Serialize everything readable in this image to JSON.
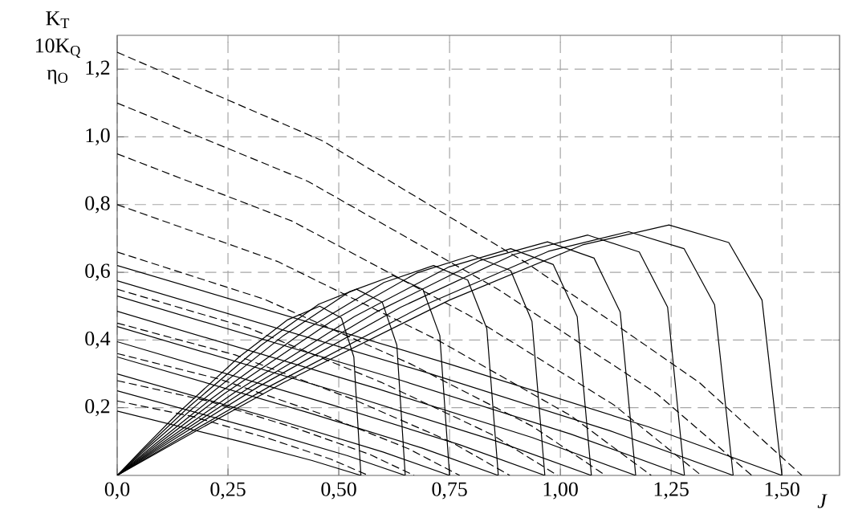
{
  "chart_data": {
    "type": "line",
    "xlabel": "J",
    "ylabel": "K$_{T}$ 10K$_{Q}$ η$_{O}$",
    "xlim": [
      0,
      1.63
    ],
    "ylim": [
      0,
      1.3
    ],
    "xticks": [
      {
        "value": 0,
        "label": "0,0"
      },
      {
        "value": 0.25,
        "label": "0,25"
      },
      {
        "value": 0.5,
        "label": "0,50"
      },
      {
        "value": 0.75,
        "label": "0,75"
      },
      {
        "value": 1.0,
        "label": "1,00"
      },
      {
        "value": 1.25,
        "label": "1,25"
      },
      {
        "value": 1.5,
        "label": "1,50"
      }
    ],
    "yticks": [
      {
        "value": 0.2,
        "label": "0,2"
      },
      {
        "value": 0.4,
        "label": "0,4"
      },
      {
        "value": 0.6,
        "label": "0,6"
      },
      {
        "value": 0.8,
        "label": "0,8"
      },
      {
        "value": 1.0,
        "label": "1,0"
      },
      {
        "value": 1.2,
        "label": "1,2"
      }
    ],
    "grid": true,
    "series": [
      {
        "color": "#000000",
        "line_style": "solid",
        "x": [
          0,
          0.055,
          0.138,
          0.275,
          0.385,
          0.457,
          0.506,
          0.534,
          0.55
        ],
        "values": [
          0,
          0.075,
          0.185,
          0.35,
          0.46,
          0.5,
          0.465,
          0.35,
          0
        ]
      },
      {
        "color": "#000000",
        "line_style": "solid",
        "x": [
          0,
          0.065,
          0.163,
          0.325,
          0.455,
          0.54,
          0.598,
          0.631,
          0.65
        ],
        "values": [
          0,
          0.083,
          0.204,
          0.385,
          0.506,
          0.55,
          0.512,
          0.385,
          0
        ]
      },
      {
        "color": "#000000",
        "line_style": "solid",
        "x": [
          0,
          0.075,
          0.188,
          0.375,
          0.525,
          0.623,
          0.69,
          0.728,
          0.75
        ],
        "values": [
          0,
          0.089,
          0.218,
          0.413,
          0.543,
          0.59,
          0.549,
          0.413,
          0
        ]
      },
      {
        "color": "#000000",
        "line_style": "solid",
        "x": [
          0,
          0.086,
          0.215,
          0.43,
          0.602,
          0.714,
          0.791,
          0.834,
          0.86
        ],
        "values": [
          0,
          0.093,
          0.229,
          0.434,
          0.57,
          0.62,
          0.577,
          0.434,
          0
        ]
      },
      {
        "color": "#000000",
        "line_style": "solid",
        "x": [
          0,
          0.097,
          0.241,
          0.483,
          0.676,
          0.801,
          0.888,
          0.936,
          0.965
        ],
        "values": [
          0,
          0.098,
          0.241,
          0.455,
          0.598,
          0.65,
          0.605,
          0.455,
          0
        ]
      },
      {
        "color": "#000000",
        "line_style": "solid",
        "x": [
          0,
          0.107,
          0.268,
          0.535,
          0.749,
          0.888,
          0.984,
          1.038,
          1.07
        ],
        "values": [
          0,
          0.101,
          0.248,
          0.469,
          0.616,
          0.67,
          0.623,
          0.469,
          0
        ]
      },
      {
        "color": "#000000",
        "line_style": "solid",
        "x": [
          0,
          0.117,
          0.293,
          0.585,
          0.819,
          0.971,
          1.076,
          1.135,
          1.17
        ],
        "values": [
          0,
          0.104,
          0.255,
          0.483,
          0.635,
          0.69,
          0.642,
          0.483,
          0
        ]
      },
      {
        "color": "#000000",
        "line_style": "solid",
        "x": [
          0,
          0.128,
          0.32,
          0.64,
          0.896,
          1.062,
          1.178,
          1.242,
          1.28
        ],
        "values": [
          0,
          0.107,
          0.263,
          0.497,
          0.653,
          0.71,
          0.66,
          0.497,
          0
        ]
      },
      {
        "color": "#000000",
        "line_style": "solid",
        "x": [
          0,
          0.139,
          0.348,
          0.695,
          0.973,
          1.154,
          1.279,
          1.348,
          1.39
        ],
        "values": [
          0,
          0.108,
          0.266,
          0.504,
          0.662,
          0.72,
          0.67,
          0.504,
          0
        ]
      },
      {
        "color": "#000000",
        "line_style": "solid",
        "x": [
          0,
          0.15,
          0.375,
          0.75,
          1.05,
          1.245,
          1.38,
          1.455,
          1.5
        ],
        "values": [
          0,
          0.111,
          0.274,
          0.518,
          0.681,
          0.74,
          0.688,
          0.518,
          0
        ]
      },
      {
        "color": "#000000",
        "line_style": "solid",
        "x": [
          0,
          0.275,
          0.44,
          0.55
        ],
        "values": [
          0.19,
          0.101,
          0.044,
          0
        ]
      },
      {
        "color": "#000000",
        "line_style": "solid",
        "x": [
          0,
          0.325,
          0.52,
          0.65
        ],
        "values": [
          0.25,
          0.133,
          0.058,
          0
        ]
      },
      {
        "color": "#000000",
        "line_style": "solid",
        "x": [
          0,
          0.375,
          0.6,
          0.75
        ],
        "values": [
          0.3,
          0.159,
          0.069,
          0
        ]
      },
      {
        "color": "#000000",
        "line_style": "solid",
        "x": [
          0,
          0.43,
          0.688,
          0.86
        ],
        "values": [
          0.35,
          0.186,
          0.081,
          0
        ]
      },
      {
        "color": "#000000",
        "line_style": "solid",
        "x": [
          0,
          0.483,
          0.772,
          0.965
        ],
        "values": [
          0.395,
          0.209,
          0.091,
          0
        ]
      },
      {
        "color": "#000000",
        "line_style": "solid",
        "x": [
          0,
          0.535,
          0.856,
          1.07
        ],
        "values": [
          0.44,
          0.233,
          0.101,
          0
        ]
      },
      {
        "color": "#000000",
        "line_style": "solid",
        "x": [
          0,
          0.585,
          0.936,
          1.17
        ],
        "values": [
          0.485,
          0.257,
          0.112,
          0
        ]
      },
      {
        "color": "#000000",
        "line_style": "solid",
        "x": [
          0,
          0.64,
          1.024,
          1.28
        ],
        "values": [
          0.53,
          0.281,
          0.122,
          0
        ]
      },
      {
        "color": "#000000",
        "line_style": "solid",
        "x": [
          0,
          0.695,
          1.112,
          1.39
        ],
        "values": [
          0.575,
          0.305,
          0.132,
          0
        ]
      },
      {
        "color": "#000000",
        "line_style": "solid",
        "x": [
          0,
          0.75,
          1.2,
          1.5
        ],
        "values": [
          0.62,
          0.329,
          0.143,
          0
        ]
      },
      {
        "color": "#000000",
        "line_style": "dashed",
        "x": [
          0,
          0.17,
          0.34,
          0.482,
          0.567
        ],
        "values": [
          0.22,
          0.174,
          0.11,
          0.048,
          0
        ]
      },
      {
        "color": "#000000",
        "line_style": "dashed",
        "x": [
          0,
          0.201,
          0.402,
          0.57,
          0.67
        ],
        "values": [
          0.28,
          0.221,
          0.14,
          0.062,
          0
        ]
      },
      {
        "color": "#000000",
        "line_style": "dashed",
        "x": [
          0,
          0.232,
          0.464,
          0.657,
          0.773
        ],
        "values": [
          0.36,
          0.284,
          0.18,
          0.079,
          0
        ]
      },
      {
        "color": "#000000",
        "line_style": "dashed",
        "x": [
          0,
          0.266,
          0.532,
          0.753,
          0.886
        ],
        "values": [
          0.45,
          0.356,
          0.225,
          0.099,
          0
        ]
      },
      {
        "color": "#000000",
        "line_style": "dashed",
        "x": [
          0,
          0.298,
          0.596,
          0.845,
          0.994
        ],
        "values": [
          0.55,
          0.435,
          0.275,
          0.121,
          0
        ]
      },
      {
        "color": "#000000",
        "line_style": "dashed",
        "x": [
          0,
          0.331,
          0.661,
          0.937,
          1.102
        ],
        "values": [
          0.66,
          0.521,
          0.33,
          0.145,
          0
        ]
      },
      {
        "color": "#000000",
        "line_style": "dashed",
        "x": [
          0,
          0.362,
          0.723,
          1.024,
          1.205
        ],
        "values": [
          0.8,
          0.632,
          0.4,
          0.176,
          0
        ]
      },
      {
        "color": "#000000",
        "line_style": "dashed",
        "x": [
          0,
          0.395,
          0.791,
          1.12,
          1.318
        ],
        "values": [
          0.95,
          0.751,
          0.475,
          0.209,
          0
        ]
      },
      {
        "color": "#000000",
        "line_style": "dashed",
        "x": [
          0,
          0.43,
          0.859,
          1.217,
          1.432
        ],
        "values": [
          1.1,
          0.869,
          0.55,
          0.242,
          0
        ]
      },
      {
        "color": "#000000",
        "line_style": "dashed",
        "x": [
          0,
          0.464,
          0.927,
          1.313,
          1.545
        ],
        "values": [
          1.25,
          0.988,
          0.625,
          0.275,
          0
        ]
      }
    ]
  }
}
